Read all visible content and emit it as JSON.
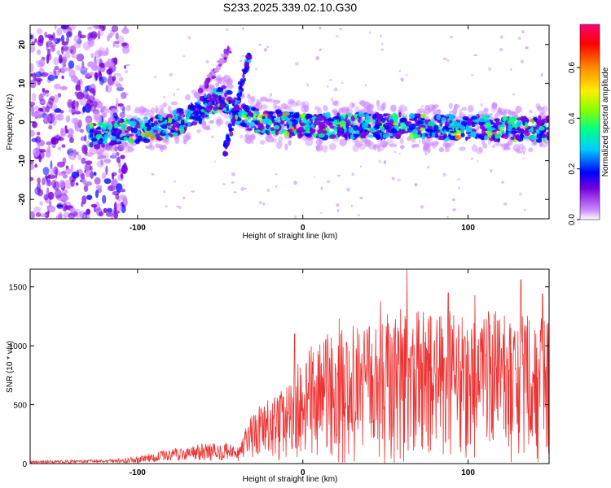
{
  "title": "S233.2025.339.02.10.G30",
  "chart_data": [
    {
      "type": "heatmap",
      "name": "spectrogram",
      "title": "S233.2025.339.02.10.G30",
      "xlabel": "Height of straight line (km)",
      "ylabel": "Frequency (Hz)",
      "xlim": [
        -165,
        149
      ],
      "ylim": [
        -25,
        25
      ],
      "xticks": [
        "-100",
        "0",
        "100"
      ],
      "xtick_values": [
        -100,
        0,
        100
      ],
      "yticks": [
        "20",
        "10",
        "0",
        "-10",
        "-20"
      ],
      "ytick_values": [
        20,
        10,
        0,
        -10,
        -20
      ],
      "ridge": [
        {
          "x": -125,
          "y": -3.5
        },
        {
          "x": -110,
          "y": -2.5
        },
        {
          "x": -95,
          "y": -2
        },
        {
          "x": -85,
          "y": -1.5
        },
        {
          "x": -75,
          "y": 0
        },
        {
          "x": -65,
          "y": 2
        },
        {
          "x": -55,
          "y": 5
        },
        {
          "x": -48,
          "y": 6
        },
        {
          "x": -35,
          "y": 1
        },
        {
          "x": 0,
          "y": -1
        },
        {
          "x": 50,
          "y": -1
        },
        {
          "x": 100,
          "y": -1.5
        },
        {
          "x": 149,
          "y": -2
        }
      ],
      "colorbar": {
        "label": "Normalized spectral amplitude",
        "range": [
          0,
          0.77
        ],
        "ticks": [
          "0.0",
          "0.2",
          "0.4",
          "0.6"
        ],
        "tick_values": [
          0,
          0.2,
          0.4,
          0.6
        ],
        "colors": [
          "#ffffff",
          "#cc88ff",
          "#7700dd",
          "#0000ff",
          "#00ccff",
          "#00ff88",
          "#88ff00",
          "#ffee00",
          "#ff8800",
          "#ff0000",
          "#ff0077"
        ]
      }
    },
    {
      "type": "line",
      "name": "snr",
      "xlabel": "Height of straight line (km)",
      "ylabel": "SNR (10 * v/v)",
      "xlim": [
        -165,
        149
      ],
      "ylim": [
        0,
        1650
      ],
      "xticks": [
        "-100",
        "0",
        "100"
      ],
      "xtick_values": [
        -100,
        0,
        100
      ],
      "yticks": [
        "0",
        "500",
        "1000",
        "1500"
      ],
      "ytick_values": [
        0,
        500,
        1000,
        1500
      ],
      "color": "#ee3333",
      "envelope": [
        {
          "x": -165,
          "y": 25
        },
        {
          "x": -120,
          "y": 35
        },
        {
          "x": -100,
          "y": 60
        },
        {
          "x": -80,
          "y": 130
        },
        {
          "x": -60,
          "y": 170
        },
        {
          "x": -45,
          "y": 180
        },
        {
          "x": -40,
          "y": 120
        },
        {
          "x": -30,
          "y": 450
        },
        {
          "x": -20,
          "y": 560
        },
        {
          "x": -10,
          "y": 650
        },
        {
          "x": 0,
          "y": 950
        },
        {
          "x": 20,
          "y": 1150
        },
        {
          "x": 40,
          "y": 1200
        },
        {
          "x": 60,
          "y": 1350
        },
        {
          "x": 80,
          "y": 1300
        },
        {
          "x": 100,
          "y": 1300
        },
        {
          "x": 120,
          "y": 1300
        },
        {
          "x": 149,
          "y": 1250
        }
      ],
      "peaks": [
        {
          "x": 63,
          "y": 1650
        },
        {
          "x": 47,
          "y": 1380
        },
        {
          "x": 132,
          "y": 1560
        },
        {
          "x": 145,
          "y": 1440
        },
        {
          "x": 88,
          "y": 1450
        },
        {
          "x": 104,
          "y": 1430
        },
        {
          "x": 22,
          "y": 1230
        },
        {
          "x": -5,
          "y": 1100
        }
      ]
    }
  ]
}
